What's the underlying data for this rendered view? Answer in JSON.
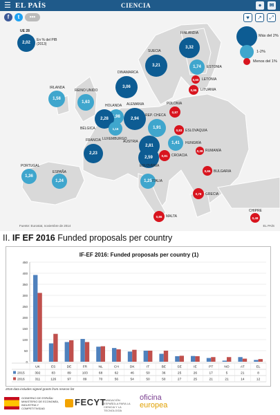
{
  "header": {
    "brand": "EL PAÍS",
    "section": "CIENCIA",
    "menu_icon": "☰",
    "right_icons": [
      "user-icon",
      "envelope-icon"
    ]
  },
  "share": {
    "fb": "f",
    "tw": "t",
    "mail": "•••"
  },
  "map_icons": [
    "heart-icon",
    "share-icon",
    "expand-icon"
  ],
  "map": {
    "ue_title": "UE 28",
    "ue_value": "2,02",
    "ue_note": "En % del PIB (2013)",
    "legend": [
      {
        "label": "Más del 2%",
        "color": "#0d5c93"
      },
      {
        "label": "1-2%",
        "color": "#3fa6cd"
      },
      {
        "label": "Menos del 1%",
        "color": "#d8141e"
      }
    ],
    "countries": [
      {
        "name": "FINLANDIA",
        "value": "3,32",
        "level": "high"
      },
      {
        "name": "SUECIA",
        "value": "3,21",
        "level": "high"
      },
      {
        "name": "ESTONIA",
        "value": "1,74",
        "level": "mid"
      },
      {
        "name": "LETONIA",
        "value": "0,60",
        "level": "low"
      },
      {
        "name": "LITUANIA",
        "value": "0,95",
        "level": "low"
      },
      {
        "name": "DINAMARCA",
        "value": "3,06",
        "level": "high"
      },
      {
        "name": "IRLANDA",
        "value": "1,58",
        "level": "mid"
      },
      {
        "name": "REINO UNIDO",
        "value": "1,63",
        "level": "mid"
      },
      {
        "name": "HOLANDA",
        "value": "1,98",
        "level": "mid"
      },
      {
        "name": "ALEMANIA",
        "value": "2,94",
        "level": "high"
      },
      {
        "name": "POLONIA",
        "value": "0,87",
        "level": "low"
      },
      {
        "name": "BÉLGICA",
        "value": "2,28",
        "level": "high"
      },
      {
        "name": "LUXEMBURGO",
        "value": "1,16",
        "level": "mid"
      },
      {
        "name": "REP. CHECA",
        "value": "1,91",
        "level": "mid"
      },
      {
        "name": "ESLOVAQUIA",
        "value": "0,83",
        "level": "low"
      },
      {
        "name": "FRANCIA",
        "value": "2,23",
        "level": "high"
      },
      {
        "name": "AUSTRIA",
        "value": "2,81",
        "level": "high"
      },
      {
        "name": "HUNGRÍA",
        "value": "1,41",
        "level": "mid"
      },
      {
        "name": "ESLOVENIA",
        "value": "2,59",
        "level": "high"
      },
      {
        "name": "CROACIA",
        "value": "0,81",
        "level": "low"
      },
      {
        "name": "RUMANÍA",
        "value": "0,39",
        "level": "low"
      },
      {
        "name": "PORTUGAL",
        "value": "1,36",
        "level": "mid"
      },
      {
        "name": "ESPAÑA",
        "value": "1,24",
        "level": "mid"
      },
      {
        "name": "ITALIA",
        "value": "1,25",
        "level": "mid"
      },
      {
        "name": "BULGARIA",
        "value": "0,65",
        "level": "low"
      },
      {
        "name": "GRECIA",
        "value": "0,78",
        "level": "low"
      },
      {
        "name": "MALTA",
        "value": "0,86",
        "level": "low"
      },
      {
        "name": "CHIPRE",
        "value": "0,48",
        "level": "low"
      }
    ],
    "source": "Fuente: Eurostat, noviembre de 2014",
    "credit": "EL PAÍS"
  },
  "heading": {
    "prefix": "II. ",
    "bold": "IF EF 2016",
    "rest": " Funded proposals per country"
  },
  "chart_data": {
    "type": "bar",
    "title": "IF-EF 2016: Funded proposals per country (1)",
    "categories": [
      "UK",
      "ES",
      "DE",
      "FR",
      "NL",
      "CH",
      "DK",
      "IT",
      "BE",
      "SE",
      "IE",
      "PT",
      "NO",
      "AT",
      "EL"
    ],
    "series": [
      {
        "name": "2015",
        "color": "#4f81bd",
        "values": [
          392,
          83,
          89,
          103,
          68,
          62,
          46,
          50,
          36,
          25,
          26,
          17,
          5,
          21,
          8
        ]
      },
      {
        "name": "2016",
        "color": "#c0504d",
        "values": [
          311,
          126,
          97,
          89,
          70,
          56,
          54,
          50,
          50,
          27,
          25,
          21,
          21,
          14,
          12
        ]
      }
    ],
    "ylim": [
      0,
      450
    ],
    "yticks": [
      0,
      50,
      100,
      150,
      200,
      250,
      300,
      350,
      400,
      450
    ],
    "grid": true,
    "legend": "bottom-table"
  },
  "footnote": "2016 data includes signed grants from reserve list",
  "footer": {
    "es_text": "GOBIERNO DE ESPAÑA · MINISTERIO DE ECONOMÍA, INDUSTRIA Y COMPETITIVIDAD",
    "fecyt": "FECYT",
    "fecyt_sub": "FUNDACIÓN ESPAÑOLA PARA LA CIENCIA Y LA TECNOLOGÍA",
    "oficina_l1": "oficina",
    "oficina_l2": "europea"
  }
}
